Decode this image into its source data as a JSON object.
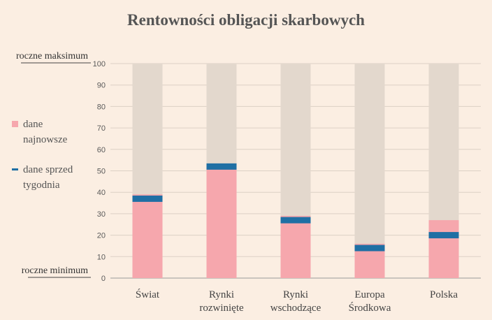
{
  "chart_data": {
    "type": "bar",
    "title": "Rentowności obligacji skarbowych",
    "categories": [
      [
        "Świat"
      ],
      [
        "Rynki",
        "rozwinięte"
      ],
      [
        "Rynki",
        "wschodzące"
      ],
      [
        "Europa",
        "Środkowa"
      ],
      [
        "Polska"
      ]
    ],
    "ylim": [
      0,
      100
    ],
    "yticks": [
      0,
      10,
      20,
      30,
      40,
      50,
      60,
      70,
      80,
      90,
      100
    ],
    "range_max_label": "roczne maksimum",
    "range_min_label": "roczne minimum",
    "series": [
      {
        "name": "dane najnowsze",
        "label_lines": [
          "dane",
          "najnowsze"
        ],
        "type": "bar",
        "values": [
          39,
          53,
          29,
          16,
          27
        ]
      },
      {
        "name": "dane sprzed tygodnia",
        "label_lines": [
          "dane sprzed",
          "tygodnia"
        ],
        "type": "marker",
        "values": [
          37,
          52,
          27,
          14,
          20
        ]
      }
    ],
    "range_bar_values": [
      100,
      100,
      100,
      100,
      100
    ],
    "grid": true,
    "legend_position": "left"
  },
  "colors": {
    "background": "#fbeee2",
    "range_bar": "#e3d8cd",
    "latest_bar": "#f6a7ad",
    "week_marker": "#1f6fa4",
    "grid": "#dcd0c5",
    "axis": "#999999"
  }
}
